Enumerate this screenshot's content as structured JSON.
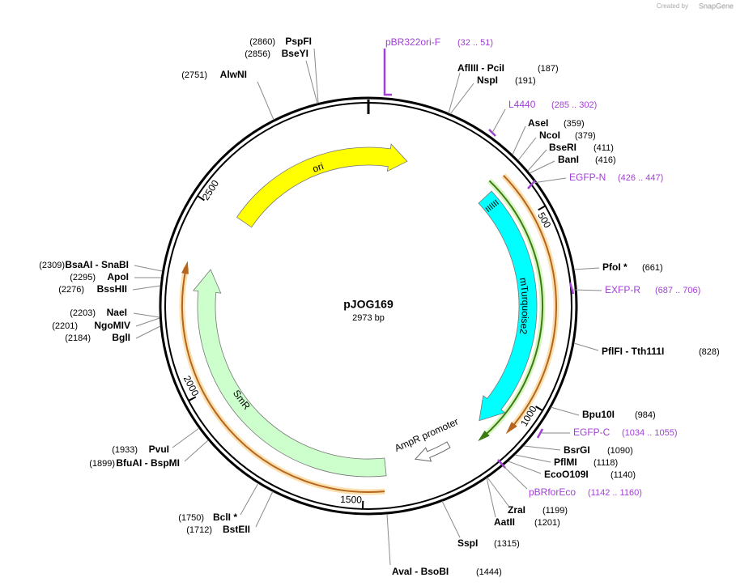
{
  "header": {
    "created_by": "Created by",
    "brand": "SnapGene"
  },
  "plasmid": {
    "name": "pJOG169",
    "size": "2973 bp"
  },
  "ticks": [
    "500",
    "1000",
    "1500",
    "2000",
    "2500"
  ],
  "features": [
    {
      "label": "ori"
    },
    {
      "label": "mTurquoise2"
    },
    {
      "label": "AmpR promoter"
    },
    {
      "label": "SmR"
    }
  ],
  "sites": [
    {
      "name": "PspFI",
      "position": "(2860)"
    },
    {
      "name": "BseYI",
      "position": "(2856)"
    },
    {
      "name": "AlwNI",
      "position": "(2751)"
    },
    {
      "name": "BsaAI - SnaBI",
      "position": "(2309)"
    },
    {
      "name": "ApoI",
      "position": "(2295)"
    },
    {
      "name": "BssHII",
      "position": "(2276)"
    },
    {
      "name": "NaeI",
      "position": "(2203)"
    },
    {
      "name": "NgoMIV",
      "position": "(2201)"
    },
    {
      "name": "BglI",
      "position": "(2184)"
    },
    {
      "name": "PvuI",
      "position": "(1933)"
    },
    {
      "name": "BfuAI - BspMI",
      "position": "(1899)"
    },
    {
      "name": "BclI *",
      "position": "(1750)"
    },
    {
      "name": "BstEII",
      "position": "(1712)"
    },
    {
      "name": "AvaI - BsoBI",
      "position": "(1444)"
    },
    {
      "name": "SspI",
      "position": "(1315)"
    },
    {
      "name": "AatII",
      "position": "(1201)"
    },
    {
      "name": "ZraI",
      "position": "(1199)"
    },
    {
      "name": "EcoO109I",
      "position": "(1140)"
    },
    {
      "name": "PflMI",
      "position": "(1118)"
    },
    {
      "name": "BsrGI",
      "position": "(1090)"
    },
    {
      "name": "Bpu10I",
      "position": "(984)"
    },
    {
      "name": "PflFI - Tth111I",
      "position": "(828)"
    },
    {
      "name": "PfoI *",
      "position": "(661)"
    },
    {
      "name": "BanI",
      "position": "(416)"
    },
    {
      "name": "BseRI",
      "position": "(411)"
    },
    {
      "name": "NcoI",
      "position": "(379)"
    },
    {
      "name": "AseI",
      "position": "(359)"
    },
    {
      "name": "NspI",
      "position": "(191)"
    },
    {
      "name": "AflIII - PciI",
      "position": "(187)"
    }
  ],
  "primers": [
    {
      "name": "pBR322ori-F",
      "range": "(32 .. 51)"
    },
    {
      "name": "L4440",
      "range": "(285 .. 302)"
    },
    {
      "name": "EGFP-N",
      "range": "(426 .. 447)"
    },
    {
      "name": "EXFP-R",
      "range": "(687 .. 706)"
    },
    {
      "name": "EGFP-C",
      "range": "(1034 .. 1055)"
    },
    {
      "name": "pBRforEco",
      "range": "(1142 .. 1160)"
    }
  ]
}
